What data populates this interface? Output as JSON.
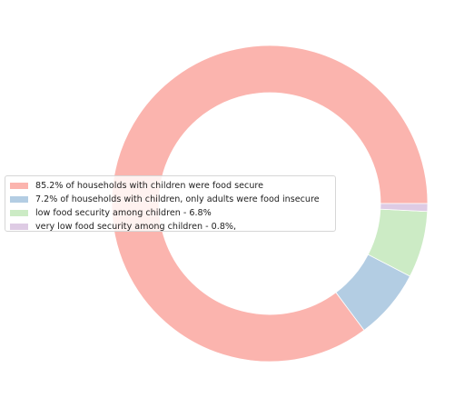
{
  "chart_data": {
    "type": "pie",
    "donut": true,
    "title": "",
    "legend_position": "center-left",
    "slices": [
      {
        "label": "85.2% of households with children were food secure",
        "value": 85.2,
        "color": "#fbb4ae"
      },
      {
        "label": "7.2%  of households with children, only adults were food insecure",
        "value": 7.2,
        "color": "#b3cde3"
      },
      {
        "label": "low food security among children - 6.8%",
        "value": 6.8,
        "color": "#ccebc5"
      },
      {
        "label": "very low food security among children - 0.8%,",
        "value": 0.8,
        "color": "#decbe4"
      }
    ]
  }
}
